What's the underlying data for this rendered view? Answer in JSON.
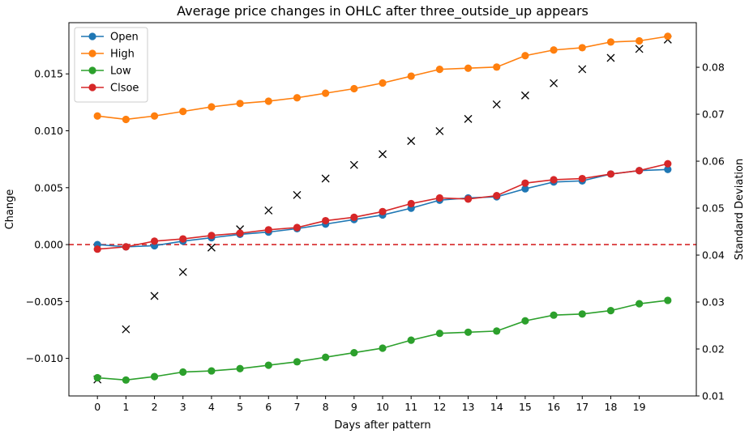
{
  "chart_data": {
    "type": "line",
    "title": "Average price changes in OHLC after three_outside_up appears",
    "xlabel": "Days after pattern",
    "ylabel": "Change",
    "y2label": "Standard Deviation",
    "x": [
      0,
      1,
      2,
      3,
      4,
      5,
      6,
      7,
      8,
      9,
      10,
      11,
      12,
      13,
      14,
      15,
      16,
      17,
      18,
      19,
      20
    ],
    "x_tick_labels": [
      "0",
      "1",
      "2",
      "3",
      "4",
      "5",
      "6",
      "7",
      "8",
      "9",
      "10",
      "11",
      "12",
      "13",
      "14",
      "15",
      "16",
      "17",
      "18",
      "19"
    ],
    "ylim": [
      -0.0133,
      0.0195
    ],
    "y_ticks": [
      -0.01,
      -0.005,
      0.0,
      0.005,
      0.01,
      0.015
    ],
    "y_tick_labels": [
      "−0.010",
      "−0.005",
      "0.000",
      "0.005",
      "0.010",
      "0.015"
    ],
    "y2lim": [
      0.01,
      0.0895
    ],
    "y2_ticks": [
      0.01,
      0.02,
      0.03,
      0.04,
      0.05,
      0.06,
      0.07,
      0.08
    ],
    "y2_tick_labels": [
      "0.01",
      "0.02",
      "0.03",
      "0.04",
      "0.05",
      "0.06",
      "0.07",
      "0.08"
    ],
    "series": [
      {
        "name": "Open",
        "color": "#1f77b4",
        "values": [
          0.0,
          -0.0002,
          -0.0001,
          0.0003,
          0.0006,
          0.0009,
          0.0011,
          0.0014,
          0.0018,
          0.0022,
          0.0026,
          0.0032,
          0.0039,
          0.0041,
          0.0042,
          0.0049,
          0.0055,
          0.0056,
          0.0062,
          0.0065,
          0.0066
        ]
      },
      {
        "name": "High",
        "color": "#ff7f0e",
        "values": [
          0.0113,
          0.011,
          0.0113,
          0.0117,
          0.0121,
          0.0124,
          0.0126,
          0.0129,
          0.0133,
          0.0137,
          0.0142,
          0.0148,
          0.0154,
          0.0155,
          0.0156,
          0.0166,
          0.0171,
          0.0173,
          0.0178,
          0.0179,
          0.0183
        ]
      },
      {
        "name": "Low",
        "color": "#2ca02c",
        "values": [
          -0.0117,
          -0.0119,
          -0.0116,
          -0.0112,
          -0.0111,
          -0.0109,
          -0.0106,
          -0.0103,
          -0.0099,
          -0.0095,
          -0.0091,
          -0.0084,
          -0.0078,
          -0.0077,
          -0.0076,
          -0.0067,
          -0.0062,
          -0.0061,
          -0.0058,
          -0.0052,
          -0.0049
        ]
      },
      {
        "name": "Clsoe",
        "color": "#d62728",
        "values": [
          -0.0004,
          -0.0002,
          0.0003,
          0.0005,
          0.0008,
          0.001,
          0.0013,
          0.0015,
          0.0021,
          0.0024,
          0.0029,
          0.0036,
          0.0041,
          0.004,
          0.0043,
          0.0054,
          0.0057,
          0.0058,
          0.0062,
          0.0065,
          0.0071
        ]
      }
    ],
    "std_dev": {
      "marker": "x",
      "color": "#000000",
      "axis": "right",
      "values": [
        0.0135,
        0.0242,
        0.0313,
        0.0364,
        0.0416,
        0.0455,
        0.0495,
        0.0528,
        0.0563,
        0.0592,
        0.0615,
        0.0643,
        0.0664,
        0.069,
        0.0721,
        0.074,
        0.0766,
        0.0796,
        0.082,
        0.0839,
        0.0859
      ]
    },
    "hline": {
      "value": 0.0,
      "color": "#d62728",
      "style": "dashed"
    },
    "legend": {
      "placement": "top-left"
    },
    "grid": false
  }
}
